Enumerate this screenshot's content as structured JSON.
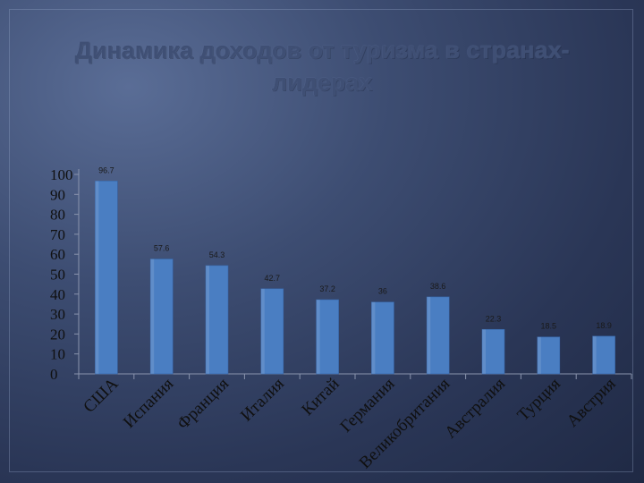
{
  "chart_data": {
    "type": "bar",
    "title": "Динамика доходов от туризма в странах-лидерах",
    "categories": [
      "США",
      "Испания",
      "Франция",
      "Италия",
      "Китай",
      "Германия",
      "Великобритания",
      "Австралия",
      "Турция",
      "Австрия"
    ],
    "values": [
      96.7,
      57.6,
      54.3,
      42.7,
      37.2,
      36,
      38.6,
      22.3,
      18.5,
      18.9
    ],
    "data_labels": [
      "96.7",
      "57.6",
      "54.3",
      "42.7",
      "37.2",
      "36",
      "38.6",
      "22.3",
      "18.5",
      "18.9"
    ],
    "ylim": [
      0,
      100
    ],
    "yticks": [
      "0",
      "10",
      "20",
      "30",
      "40",
      "50",
      "60",
      "70",
      "80",
      "90",
      "100"
    ],
    "grid": false,
    "bar_color": "#4a7ec2"
  }
}
